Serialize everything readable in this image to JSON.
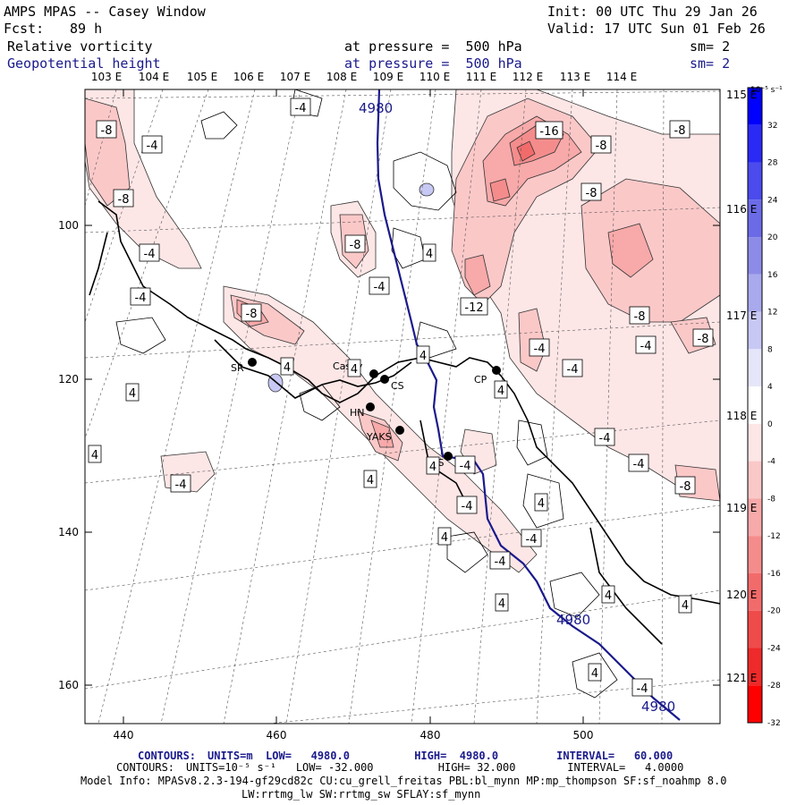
{
  "header": {
    "title": "AMPS MPAS -- Casey Window",
    "init": "Init: 00 UTC Thu 29 Jan 26",
    "fcst_label": "Fcst:",
    "fcst_value": "89 h",
    "valid": "Valid: 17 UTC Sun 01 Feb 26",
    "field1_name": "Relative vorticity",
    "field1_level": "at pressure =  500 hPa",
    "field1_sm": "sm= 2",
    "field2_name": "Geopotential height",
    "field2_level": "at pressure =  500 hPa",
    "field2_sm": "sm= 2"
  },
  "lon_labels_top": [
    "103 E",
    "104 E",
    "105 E",
    "106 E",
    "107 E",
    "108 E",
    "109 E",
    "110 E",
    "111 E",
    "112 E",
    "113 E",
    "114 E"
  ],
  "lat_labels_right": [
    "115 E",
    "116 E",
    "117 E",
    "118 E",
    "119 E",
    "120 E",
    "121 E"
  ],
  "x_ticks": [
    "440",
    "460",
    "480",
    "500"
  ],
  "y_ticks": [
    "100",
    "120",
    "140",
    "160"
  ],
  "colorbar": {
    "unit": "10⁻⁵ s⁻¹",
    "labels": [
      "32",
      "28",
      "24",
      "20",
      "16",
      "12",
      "8",
      "4",
      "0",
      "-4",
      "-8",
      "-12",
      "-16",
      "-20",
      "-24",
      "-28",
      "-32"
    ],
    "colors": [
      "#0000ff",
      "#2a2af5",
      "#4b4bee",
      "#6b6be8",
      "#8c8ce8",
      "#a9a9ee",
      "#c8c8f4",
      "#e6e6fa",
      "#ffffff",
      "#fde6e6",
      "#fbc8c8",
      "#f8a9a9",
      "#f58c8c",
      "#f26b6b",
      "#f04b4b",
      "#ee2a2a",
      "#ff0000"
    ]
  },
  "stations": [
    "SR",
    "Casey",
    "CS",
    "HN",
    "YAKS",
    "CP",
    "DS"
  ],
  "height_labels": [
    "4980",
    "4980",
    "4980"
  ],
  "contour_labels": [
    "-8",
    "-4",
    "-4",
    "-8",
    "-4",
    "-4",
    "4",
    "4",
    "4",
    "4",
    "-4",
    "-8",
    "4",
    "-4",
    "-8",
    "4",
    "4",
    "4",
    "4",
    "-4",
    "-16",
    "-8",
    "-8",
    "-8",
    "-12",
    "-8",
    "-8",
    "-4",
    "-4",
    "-4",
    "-8",
    "-4",
    "-4",
    "-4",
    "4",
    "4",
    "-4",
    "4",
    "4",
    "4",
    "4",
    "-4",
    "-4"
  ],
  "footer": {
    "line1_label": "CONTOURS:",
    "line1": "UNITS=m  LOW=   4980.0          HIGH=  4980.0         INTERVAL=   60.000",
    "line2_label": "CONTOURS:",
    "line2": "UNITS=10⁻⁵ s⁻¹   LOW= -32.000          HIGH= 32.000        INTERVAL=   4.0000",
    "line3": "Model Info: MPASv8.2.3-194-gf29cd82c CU:cu_grell_freitas PBL:bl_mynn MP:mp_thompson SF:sf_noahmp 8.0",
    "line4": "LW:rrtmg_lw SW:rrtmg_sw SFLAY:sf_mynn"
  }
}
